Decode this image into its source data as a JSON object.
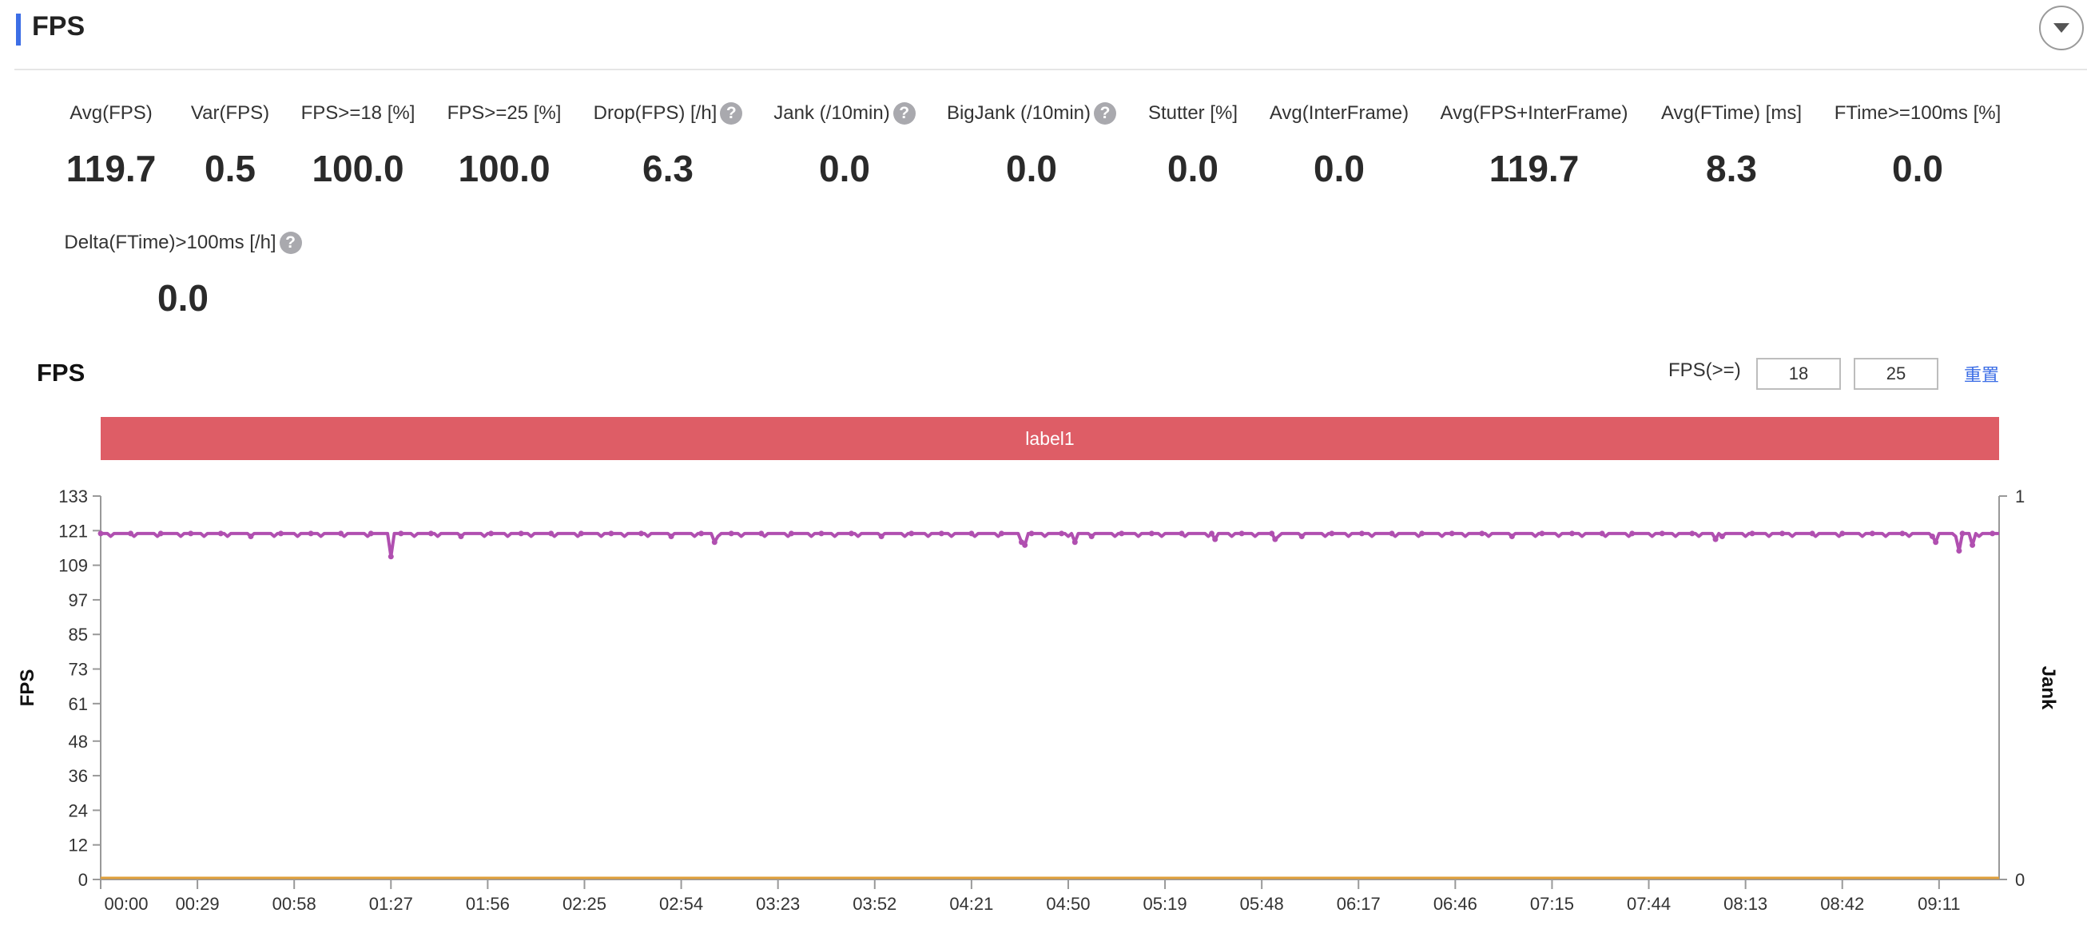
{
  "header": {
    "title": "FPS"
  },
  "metrics": [
    {
      "label": "Avg(FPS)",
      "value": "119.7",
      "help": false
    },
    {
      "label": "Var(FPS)",
      "value": "0.5",
      "help": false
    },
    {
      "label": "FPS>=18 [%]",
      "value": "100.0",
      "help": false
    },
    {
      "label": "FPS>=25 [%]",
      "value": "100.0",
      "help": false
    },
    {
      "label": "Drop(FPS) [/h]",
      "value": "6.3",
      "help": true
    },
    {
      "label": "Jank (/10min)",
      "value": "0.0",
      "help": true
    },
    {
      "label": "BigJank (/10min)",
      "value": "0.0",
      "help": true
    },
    {
      "label": "Stutter [%]",
      "value": "0.0",
      "help": false
    },
    {
      "label": "Avg(InterFrame)",
      "value": "0.0",
      "help": false
    },
    {
      "label": "Avg(FPS+InterFrame)",
      "value": "119.7",
      "help": false
    },
    {
      "label": "Avg(FTime) [ms]",
      "value": "8.3",
      "help": false
    },
    {
      "label": "FTime>=100ms [%]",
      "value": "0.0",
      "help": false
    },
    {
      "label": "Delta(FTime)>100ms [/h]",
      "value": "0.0",
      "help": true
    }
  ],
  "chart_panel": {
    "title": "FPS",
    "threshold_label": "FPS(>=)",
    "threshold_low": "18",
    "threshold_high": "25",
    "reset_label": "重置",
    "band_label": "label1"
  },
  "chart_data": {
    "type": "line",
    "ylabel": "FPS",
    "y2label": "Jank",
    "ylim": [
      0,
      133
    ],
    "y2lim": [
      0,
      1
    ],
    "yticks": [
      "0",
      "12",
      "24",
      "36",
      "48",
      "61",
      "73",
      "85",
      "97",
      "109",
      "121",
      "133"
    ],
    "y2ticks": [
      "0",
      "1"
    ],
    "xticks": [
      "00:00",
      "00:29",
      "00:58",
      "01:27",
      "01:56",
      "02:25",
      "02:54",
      "03:23",
      "03:52",
      "04:21",
      "04:50",
      "05:19",
      "05:48",
      "06:17",
      "06:46",
      "07:15",
      "07:44",
      "08:13",
      "08:42",
      "09:11"
    ],
    "xlim_seconds": [
      0,
      569
    ],
    "series": [
      {
        "name": "FPS",
        "color": "#b04fb0",
        "baseline": 120,
        "dips": [
          {
            "t": 87,
            "v": 112
          },
          {
            "t": 184,
            "v": 117
          },
          {
            "t": 276,
            "v": 117
          },
          {
            "t": 277,
            "v": 116
          },
          {
            "t": 292,
            "v": 117
          },
          {
            "t": 334,
            "v": 118
          },
          {
            "t": 352,
            "v": 118
          },
          {
            "t": 484,
            "v": 118
          },
          {
            "t": 550,
            "v": 117
          },
          {
            "t": 557,
            "v": 114
          },
          {
            "t": 561,
            "v": 116
          }
        ]
      },
      {
        "name": "Jank",
        "color": "#e0a03a",
        "value": 0
      }
    ],
    "grid": false,
    "legend": "none"
  },
  "colors": {
    "accent": "#3c6ee6",
    "band": "#de5d66",
    "fps_line": "#b04fb0",
    "jank_line": "#e0a03a"
  }
}
